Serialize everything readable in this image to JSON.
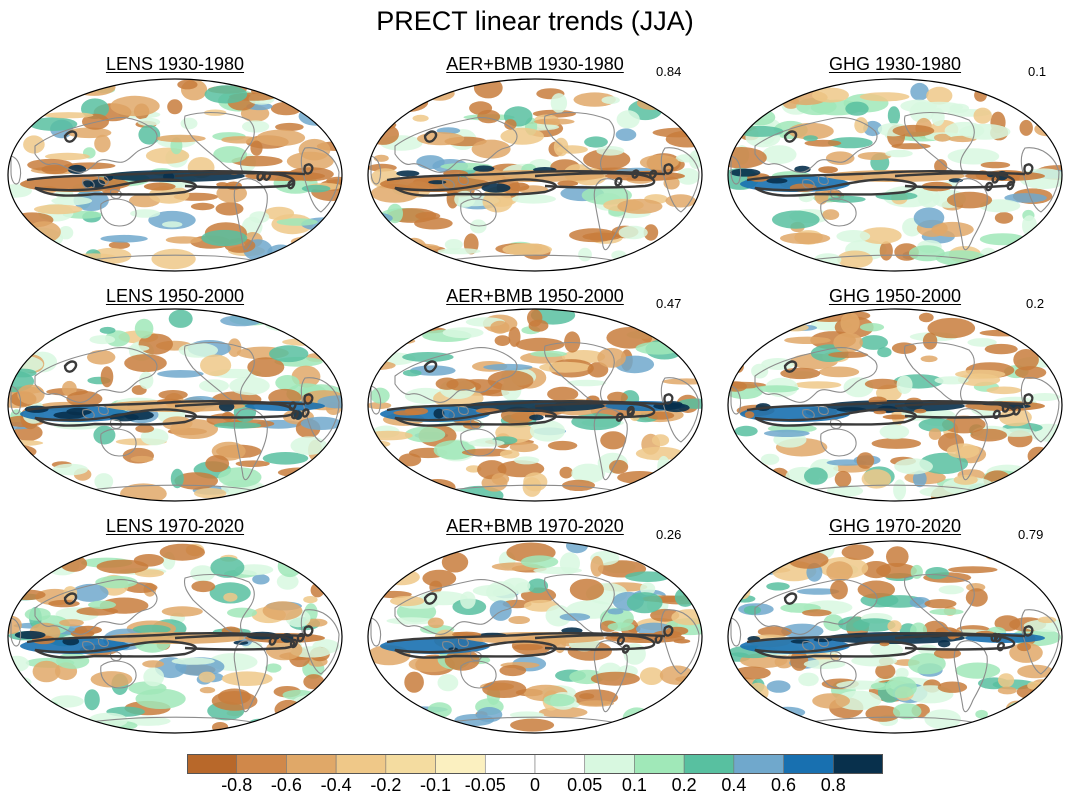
{
  "title": "PRECT linear trends (JJA)",
  "panels": [
    {
      "title": "LENS 1930-1980",
      "corr": ""
    },
    {
      "title": "AER+BMB 1930-1980",
      "corr": "0.84"
    },
    {
      "title": "GHG 1930-1980",
      "corr": "0.1"
    },
    {
      "title": "LENS 1950-2000",
      "corr": ""
    },
    {
      "title": "AER+BMB 1950-2000",
      "corr": "0.47"
    },
    {
      "title": "GHG 1950-2000",
      "corr": "0.2"
    },
    {
      "title": "LENS 1970-2020",
      "corr": ""
    },
    {
      "title": "AER+BMB 1970-2020",
      "corr": "0.26"
    },
    {
      "title": "GHG 1970-2020",
      "corr": "0.79"
    }
  ],
  "colorbar": {
    "colors": [
      "#b8682a",
      "#d0884a",
      "#e0a868",
      "#efc888",
      "#f4dca0",
      "#fbf0c0",
      "#ffffff",
      "#ffffff",
      "#d8f8e0",
      "#a0e8b8",
      "#58c0a0",
      "#70a8cc",
      "#1870b0",
      "#08304c"
    ],
    "labels": [
      "-0.8",
      "-0.6",
      "-0.4",
      "-0.2",
      "-0.1",
      "-0.05",
      "0",
      "0.05",
      "0.1",
      "0.2",
      "0.4",
      "0.6",
      "0.8"
    ]
  },
  "map_colors": {
    "land_line": "#8c8c8c",
    "contour": "#3a3a3a"
  }
}
